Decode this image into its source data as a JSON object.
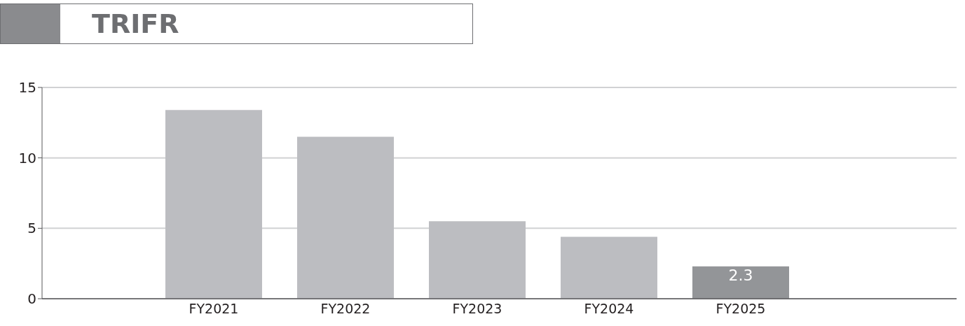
{
  "chart_data": {
    "type": "bar",
    "title": "TRIFR",
    "categories": [
      "FY2021",
      "FY2022",
      "FY2023",
      "FY2024",
      "FY2025"
    ],
    "values": [
      13.4,
      11.5,
      5.5,
      4.4,
      2.3
    ],
    "colors": [
      "#bcbdc1",
      "#bcbdc1",
      "#bcbdc1",
      "#bcbdc1",
      "#939598"
    ],
    "value_labels": [
      null,
      null,
      null,
      null,
      "2.3"
    ],
    "ylim": [
      0,
      15
    ],
    "yticks": [
      0,
      5,
      10,
      15
    ],
    "grid": "y"
  }
}
